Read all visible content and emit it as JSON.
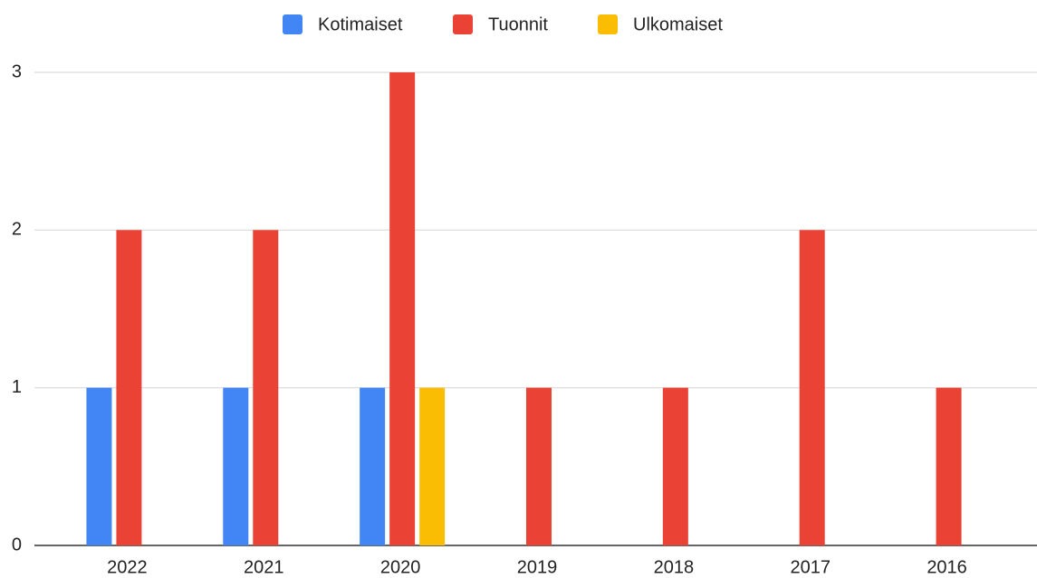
{
  "chart_data": {
    "type": "bar",
    "categories": [
      "2022",
      "2021",
      "2020",
      "2019",
      "2018",
      "2017",
      "2016"
    ],
    "series": [
      {
        "name": "Kotimaiset",
        "color": "#4285f4",
        "values": [
          1,
          1,
          1,
          0,
          0,
          0,
          0
        ]
      },
      {
        "name": "Tuonnit",
        "color": "#ea4335",
        "values": [
          2,
          2,
          3,
          1,
          1,
          2,
          1
        ]
      },
      {
        "name": "Ulkomaiset",
        "color": "#fbbc04",
        "values": [
          0,
          0,
          1,
          0,
          0,
          0,
          0
        ]
      }
    ],
    "ylim": [
      0,
      3
    ],
    "yticks": [
      0,
      1,
      2,
      3
    ],
    "grid": true,
    "legend": "top"
  }
}
